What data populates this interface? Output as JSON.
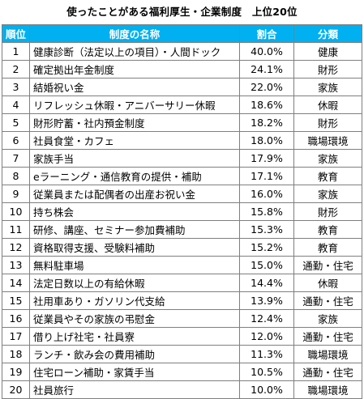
{
  "title": "使ったことがある福利厚生・企業制度　上位20位",
  "headers": {
    "rank": "順位",
    "name": "制度の名称",
    "pct": "割合",
    "cat": "分類"
  },
  "rows": [
    {
      "rank": "1",
      "name": "健康診断（法定以上の項目）・人間ドック",
      "pct": "40.0%",
      "cat": "健康"
    },
    {
      "rank": "2",
      "name": "確定拠出年金制度",
      "pct": "24.1%",
      "cat": "財形"
    },
    {
      "rank": "3",
      "name": "結婚祝い金",
      "pct": "22.0%",
      "cat": "家族"
    },
    {
      "rank": "4",
      "name": "リフレッシュ休暇・アニバーサリー休暇",
      "pct": "18.6%",
      "cat": "休暇"
    },
    {
      "rank": "5",
      "name": "財形貯蓄・社内預金制度",
      "pct": "18.2%",
      "cat": "財形"
    },
    {
      "rank": "6",
      "name": "社員食堂・カフェ",
      "pct": "18.0%",
      "cat": "職場環境"
    },
    {
      "rank": "7",
      "name": "家族手当",
      "pct": "17.9%",
      "cat": "家族"
    },
    {
      "rank": "8",
      "name": "eラーニング・通信教育の提供・補助",
      "pct": "17.1%",
      "cat": "教育"
    },
    {
      "rank": "9",
      "name": "従業員または配偶者の出産お祝い金",
      "pct": "16.0%",
      "cat": "家族"
    },
    {
      "rank": "10",
      "name": "持ち株会",
      "pct": "15.8%",
      "cat": "財形"
    },
    {
      "rank": "11",
      "name": "研修、講座、セミナー参加費補助",
      "pct": "15.3%",
      "cat": "教育"
    },
    {
      "rank": "12",
      "name": "資格取得支援、受験料補助",
      "pct": "15.2%",
      "cat": "教育"
    },
    {
      "rank": "13",
      "name": "無料駐車場",
      "pct": "15.0%",
      "cat": "通勤・住宅"
    },
    {
      "rank": "14",
      "name": "法定日数以上の有給休暇",
      "pct": "14.4%",
      "cat": "休暇"
    },
    {
      "rank": "15",
      "name": "社用車あり・ガソリン代支給",
      "pct": "13.9%",
      "cat": "通勤・住宅"
    },
    {
      "rank": "16",
      "name": "従業員やその家族の弔慰金",
      "pct": "12.4%",
      "cat": "家族"
    },
    {
      "rank": "17",
      "name": "借り上げ社宅・社員寮",
      "pct": "12.0%",
      "cat": "通勤・住宅"
    },
    {
      "rank": "18",
      "name": "ランチ・飲み会の費用補助",
      "pct": "11.3%",
      "cat": "職場環境"
    },
    {
      "rank": "19",
      "name": "住宅ローン補助・家賃手当",
      "pct": "10.5%",
      "cat": "通勤・住宅"
    },
    {
      "rank": "20",
      "name": "社員旅行",
      "pct": "10.0%",
      "cat": "職場環境"
    }
  ]
}
